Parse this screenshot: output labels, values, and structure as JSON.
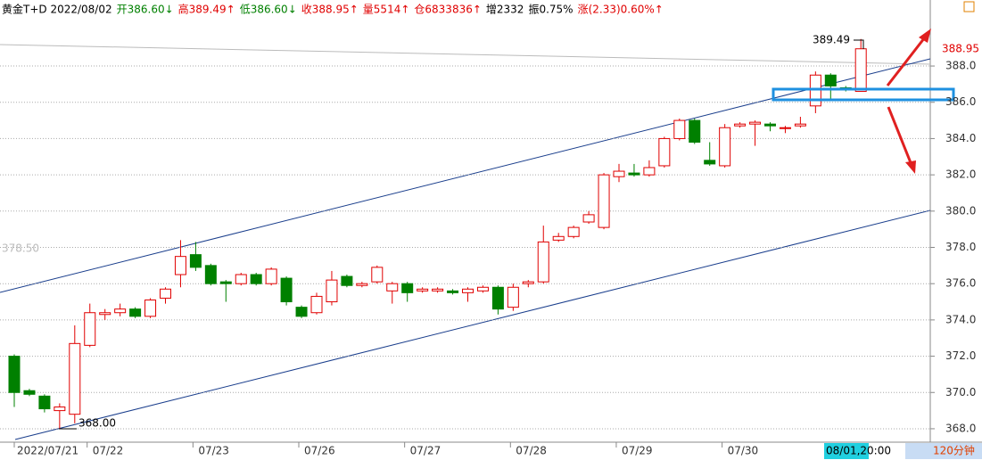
{
  "chart_data": {
    "type": "candlestick",
    "header": [
      {
        "text": "黄金T+D 2022/08/02",
        "color": "#000000"
      },
      {
        "text": "开386.60↓",
        "color": "#008000"
      },
      {
        "text": "高389.49↑",
        "color": "#e00000"
      },
      {
        "text": "低386.60↓",
        "color": "#008000"
      },
      {
        "text": "收388.95↑",
        "color": "#e00000"
      },
      {
        "text": "量5514↑",
        "color": "#e00000"
      },
      {
        "text": "仓6833836↑",
        "color": "#e00000"
      },
      {
        "text": "增2332",
        "color": "#000000"
      },
      {
        "text": "振0.75%",
        "color": "#000000"
      },
      {
        "text": "涨(2.33)0.60%↑",
        "color": "#e00000"
      }
    ],
    "categories": [
      "2022/07/21",
      null,
      null,
      null,
      null,
      null,
      "07/22",
      null,
      null,
      null,
      null,
      null,
      null,
      "07/23",
      null,
      null,
      null,
      null,
      null,
      null,
      "07/26",
      null,
      null,
      null,
      null,
      null,
      null,
      "07/27",
      null,
      null,
      null,
      null,
      null,
      null,
      "07/28",
      null,
      null,
      null,
      null,
      null,
      null,
      "07/29",
      null,
      null,
      null,
      null,
      null,
      null,
      "07/30",
      null,
      null,
      null,
      null,
      null,
      null,
      null,
      null
    ],
    "open": [
      372.0,
      370.1,
      369.8,
      369.0,
      368.8,
      372.6,
      374.3,
      374.4,
      374.6,
      374.2,
      375.2,
      376.5,
      377.6,
      377.0,
      376.1,
      376.0,
      376.5,
      376.0,
      376.3,
      374.7,
      374.4,
      375.0,
      376.4,
      375.9,
      376.1,
      375.6,
      376.0,
      375.6,
      375.6,
      375.6,
      375.5,
      375.6,
      375.8,
      374.7,
      376.0,
      376.1,
      378.4,
      378.6,
      379.4,
      379.1,
      381.9,
      382.1,
      382.0,
      382.5,
      384.0,
      385.0,
      382.8,
      382.5,
      384.7,
      384.8,
      384.8,
      384.6,
      384.7,
      385.8,
      387.5,
      386.8,
      386.6
    ],
    "high": [
      372.1,
      370.2,
      369.9,
      369.4,
      373.7,
      374.9,
      374.6,
      374.9,
      374.7,
      375.2,
      375.8,
      378.4,
      378.3,
      377.1,
      376.2,
      376.6,
      376.6,
      376.9,
      376.4,
      374.8,
      375.5,
      376.7,
      376.5,
      376.1,
      377.0,
      376.1,
      376.1,
      375.8,
      375.8,
      375.7,
      375.8,
      375.9,
      375.9,
      376.0,
      376.2,
      379.2,
      378.8,
      379.2,
      380.0,
      382.1,
      382.6,
      382.6,
      382.8,
      384.1,
      385.1,
      385.1,
      383.8,
      384.8,
      384.9,
      385.0,
      384.9,
      384.7,
      385.2,
      387.7,
      387.6,
      386.9,
      389.49
    ],
    "low": [
      369.2,
      369.8,
      368.9,
      368.0,
      368.3,
      372.5,
      374.0,
      374.2,
      374.1,
      374.1,
      374.9,
      375.8,
      376.7,
      375.9,
      375.0,
      375.9,
      375.9,
      375.9,
      374.8,
      374.1,
      374.3,
      374.8,
      375.8,
      375.8,
      376.0,
      374.9,
      375.0,
      375.5,
      375.5,
      375.4,
      375.0,
      375.5,
      374.3,
      374.5,
      375.8,
      376.0,
      378.3,
      378.5,
      379.3,
      379.0,
      381.6,
      381.9,
      381.9,
      382.4,
      383.9,
      383.7,
      382.5,
      382.4,
      384.6,
      383.6,
      384.4,
      384.3,
      384.6,
      385.4,
      386.1,
      386.6,
      386.6
    ],
    "close": [
      370.0,
      369.9,
      369.1,
      369.2,
      372.7,
      374.4,
      374.4,
      374.6,
      374.2,
      375.1,
      375.7,
      377.5,
      376.9,
      376.0,
      376.0,
      376.5,
      376.0,
      376.8,
      375.0,
      374.2,
      375.3,
      376.2,
      375.9,
      376.0,
      376.9,
      376.0,
      375.5,
      375.7,
      375.7,
      375.5,
      375.7,
      375.8,
      374.6,
      375.8,
      376.1,
      378.3,
      378.6,
      379.1,
      379.8,
      382.0,
      382.2,
      382.0,
      382.4,
      384.0,
      385.0,
      383.8,
      382.6,
      384.6,
      384.8,
      384.9,
      384.7,
      384.6,
      384.8,
      387.5,
      386.9,
      386.7,
      388.95
    ],
    "up_color": "#e00000",
    "down_color": "#008000",
    "ylim": [
      367.26,
      391.64
    ],
    "yticks": [
      {
        "value": 368,
        "label": "368.0"
      },
      {
        "value": 370,
        "label": "370.0"
      },
      {
        "value": 372,
        "label": "372.0"
      },
      {
        "value": 374,
        "label": "374.0"
      },
      {
        "value": 376,
        "label": "376.0"
      },
      {
        "value": 378,
        "label": "378.0"
      },
      {
        "value": 380,
        "label": "380.0"
      },
      {
        "value": 382,
        "label": "382.0"
      },
      {
        "value": 384,
        "label": "384.0"
      },
      {
        "value": 386,
        "label": "386.0"
      },
      {
        "value": 388,
        "label": "388.0"
      }
    ],
    "high_label": "389.49",
    "low_label": "368.00",
    "last_price": "388.95",
    "ghost_price": "378.50",
    "time_box": "08/01,20:00",
    "period": "120分钟"
  }
}
